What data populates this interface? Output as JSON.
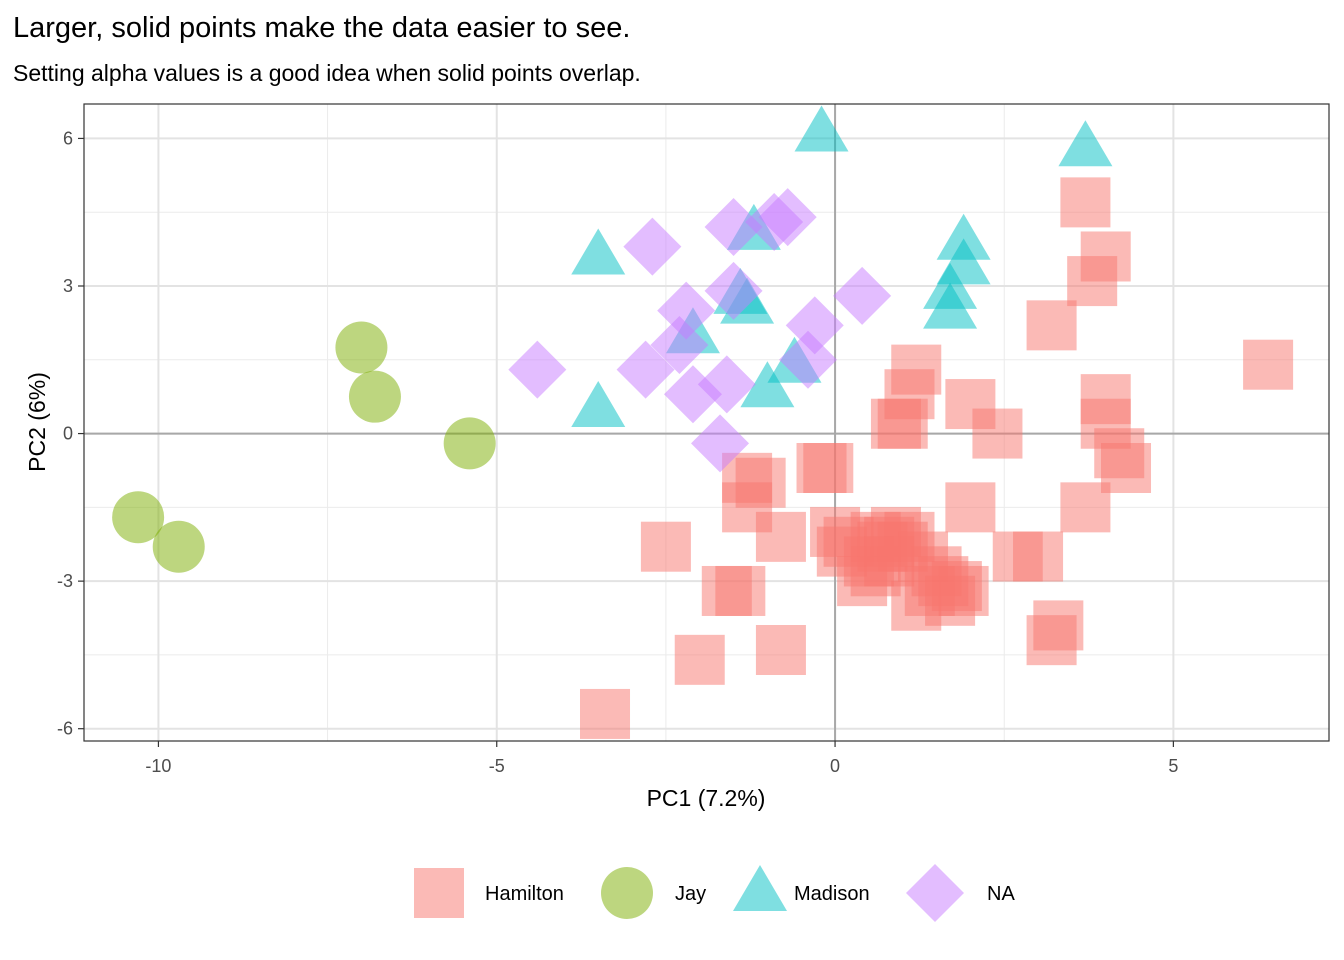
{
  "chart_data": {
    "type": "scatter",
    "title": "Larger, solid points make the data easier to see.",
    "subtitle": "Setting alpha values is a good idea when solid points overlap.",
    "xlabel": "PC1 (7.2%)",
    "ylabel": "PC2 (6%)",
    "xlim": [
      -11.1,
      7.3
    ],
    "ylim": [
      -6.25,
      6.7
    ],
    "xticks": [
      -10,
      -5,
      0,
      5
    ],
    "xtick_labels": [
      "-10",
      "-5",
      "0",
      "5"
    ],
    "yticks": [
      -6,
      -3,
      0,
      3,
      6
    ],
    "ytick_labels": [
      "-6",
      "-3",
      "0",
      "3",
      "6"
    ],
    "grid": true,
    "reference_lines": {
      "x": 0,
      "y": 0
    },
    "legend_position": "bottom",
    "alpha": 0.5,
    "series": [
      {
        "name": "Hamilton",
        "shape": "square",
        "color": "#F8766D",
        "points": [
          [
            3.7,
            4.7
          ],
          [
            4.0,
            3.6
          ],
          [
            3.8,
            3.1
          ],
          [
            3.2,
            2.2
          ],
          [
            6.4,
            1.4
          ],
          [
            1.2,
            1.3
          ],
          [
            1.1,
            0.8
          ],
          [
            0.9,
            0.2
          ],
          [
            1.0,
            0.2
          ],
          [
            2.0,
            0.6
          ],
          [
            2.4,
            0.0
          ],
          [
            4.0,
            0.7
          ],
          [
            4.0,
            0.2
          ],
          [
            4.2,
            -0.4
          ],
          [
            4.3,
            -0.7
          ],
          [
            3.7,
            -1.5
          ],
          [
            2.0,
            -1.5
          ],
          [
            -1.3,
            -0.9
          ],
          [
            -1.1,
            -1.0
          ],
          [
            -0.2,
            -0.7
          ],
          [
            -0.1,
            -0.7
          ],
          [
            -1.3,
            -1.5
          ],
          [
            -0.8,
            -2.1
          ],
          [
            -2.5,
            -2.3
          ],
          [
            -1.4,
            -3.2
          ],
          [
            -1.6,
            -3.2
          ],
          [
            -0.8,
            -4.4
          ],
          [
            -2.0,
            -4.6
          ],
          [
            -3.4,
            -5.7
          ],
          [
            0.0,
            -2.0
          ],
          [
            0.2,
            -2.2
          ],
          [
            0.1,
            -2.4
          ],
          [
            0.6,
            -2.1
          ],
          [
            0.7,
            -2.3
          ],
          [
            0.8,
            -2.2
          ],
          [
            0.9,
            -2.0
          ],
          [
            1.0,
            -2.3
          ],
          [
            1.1,
            -2.1
          ],
          [
            0.6,
            -2.8
          ],
          [
            0.8,
            -2.6
          ],
          [
            1.3,
            -2.5
          ],
          [
            1.5,
            -2.8
          ],
          [
            1.6,
            -3.0
          ],
          [
            1.4,
            -3.2
          ],
          [
            1.8,
            -3.1
          ],
          [
            1.7,
            -3.4
          ],
          [
            1.2,
            -3.5
          ],
          [
            0.4,
            -3.0
          ],
          [
            2.7,
            -2.5
          ],
          [
            3.0,
            -2.5
          ],
          [
            3.3,
            -3.9
          ],
          [
            3.2,
            -4.2
          ],
          [
            0.5,
            -2.6
          ],
          [
            1.9,
            -3.2
          ]
        ]
      },
      {
        "name": "Jay",
        "shape": "circle",
        "color": "#7CAE00",
        "points": [
          [
            -7.0,
            1.75
          ],
          [
            -6.8,
            0.75
          ],
          [
            -5.4,
            -0.2
          ],
          [
            -10.3,
            -1.7
          ],
          [
            -9.7,
            -2.3
          ]
        ]
      },
      {
        "name": "Madison",
        "shape": "triangle",
        "color": "#00BFC4",
        "points": [
          [
            -0.2,
            6.1
          ],
          [
            3.7,
            5.8
          ],
          [
            -3.5,
            3.6
          ],
          [
            -1.2,
            4.1
          ],
          [
            -1.3,
            2.6
          ],
          [
            -1.4,
            2.8
          ],
          [
            -2.1,
            2.0
          ],
          [
            -1.0,
            0.9
          ],
          [
            -0.6,
            1.4
          ],
          [
            -3.5,
            0.5
          ],
          [
            1.9,
            3.9
          ],
          [
            1.9,
            3.4
          ],
          [
            1.7,
            2.9
          ],
          [
            1.7,
            2.5
          ]
        ]
      },
      {
        "name": "NA",
        "shape": "diamond",
        "color": "#C77CFF",
        "points": [
          [
            -2.7,
            3.8
          ],
          [
            -1.5,
            4.2
          ],
          [
            -0.9,
            4.3
          ],
          [
            -0.7,
            4.4
          ],
          [
            0.4,
            2.8
          ],
          [
            -1.5,
            2.9
          ],
          [
            -2.2,
            2.5
          ],
          [
            -2.3,
            1.8
          ],
          [
            -0.3,
            2.2
          ],
          [
            -0.4,
            1.5
          ],
          [
            -2.8,
            1.3
          ],
          [
            -4.4,
            1.3
          ],
          [
            -1.6,
            1.0
          ],
          [
            -2.1,
            0.8
          ],
          [
            -1.7,
            -0.2
          ]
        ]
      }
    ]
  }
}
